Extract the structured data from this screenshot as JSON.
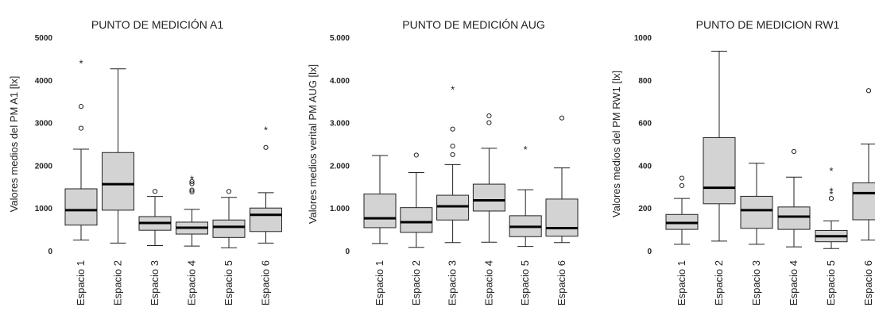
{
  "chart_data": [
    {
      "type": "box",
      "title": "PUNTO DE MEDICIÓN A1",
      "ylabel": "Valores medios del PM A1 [lx]",
      "ylim": [
        0,
        5000
      ],
      "yticks": [
        "0",
        "1000",
        "2000",
        "3000",
        "4000",
        "5000"
      ],
      "ytick_values": [
        0,
        1000,
        2000,
        3000,
        4000,
        5000
      ],
      "grid": false,
      "categories": [
        "Espacio 1",
        "Espacio 2",
        "Espacio 3",
        "Espacio 4",
        "Espacio 5",
        "Espacio 6"
      ],
      "boxes": [
        {
          "min": 250,
          "q1": 600,
          "median": 950,
          "q3": 1450,
          "max": 2380,
          "outliers": [
            2870,
            3380
          ],
          "extremes": [
            4400
          ]
        },
        {
          "min": 180,
          "q1": 950,
          "median": 1560,
          "q3": 2300,
          "max": 4260,
          "outliers": [],
          "extremes": []
        },
        {
          "min": 120,
          "q1": 480,
          "median": 650,
          "q3": 800,
          "max": 1270,
          "outliers": [
            1390
          ],
          "extremes": []
        },
        {
          "min": 110,
          "q1": 390,
          "median": 540,
          "q3": 670,
          "max": 970,
          "outliers": [
            1380,
            1420,
            1570,
            1620
          ],
          "extremes": [
            1680
          ]
        },
        {
          "min": 70,
          "q1": 310,
          "median": 560,
          "q3": 720,
          "max": 1250,
          "outliers": [
            1390
          ],
          "extremes": []
        },
        {
          "min": 180,
          "q1": 450,
          "median": 840,
          "q3": 1000,
          "max": 1360,
          "outliers": [
            2420
          ],
          "extremes": [
            2830
          ]
        }
      ]
    },
    {
      "type": "box",
      "title": "PUNTO DE MEDICIÓN AUG",
      "ylabel": "Valores medios verital PM AUG [lx]",
      "ylim": [
        0,
        5000
      ],
      "yticks": [
        "0",
        "1.000",
        "2.000",
        "3.000",
        "4.000",
        "5.000"
      ],
      "ytick_values": [
        0,
        1000,
        2000,
        3000,
        4000,
        5000
      ],
      "grid": false,
      "categories": [
        "Espacio 1",
        "Espacio 2",
        "Espacio 3",
        "Espacio 4",
        "Espacio 5",
        "Espacio 6"
      ],
      "boxes": [
        {
          "min": 170,
          "q1": 540,
          "median": 760,
          "q3": 1330,
          "max": 2230,
          "outliers": [],
          "extremes": []
        },
        {
          "min": 80,
          "q1": 430,
          "median": 670,
          "q3": 1010,
          "max": 1830,
          "outliers": [
            2240
          ],
          "extremes": []
        },
        {
          "min": 190,
          "q1": 720,
          "median": 1040,
          "q3": 1300,
          "max": 2020,
          "outliers": [
            2250,
            2450,
            2850
          ],
          "extremes": [
            3780
          ]
        },
        {
          "min": 200,
          "q1": 930,
          "median": 1180,
          "q3": 1560,
          "max": 2400,
          "outliers": [
            3000,
            3160
          ],
          "extremes": []
        },
        {
          "min": 100,
          "q1": 330,
          "median": 560,
          "q3": 820,
          "max": 1430,
          "outliers": [],
          "extremes": [
            2380
          ]
        },
        {
          "min": 190,
          "q1": 340,
          "median": 530,
          "q3": 1210,
          "max": 1940,
          "outliers": [
            3110
          ],
          "extremes": []
        }
      ]
    },
    {
      "type": "box",
      "title": "PUNTO DE MEDICION RW1",
      "ylabel": "Valores medios del PM RW1 [lx]",
      "ylim": [
        0,
        1000
      ],
      "yticks": [
        "0",
        "200",
        "400",
        "600",
        "800",
        "1000"
      ],
      "ytick_values": [
        0,
        200,
        400,
        600,
        800,
        1000
      ],
      "grid": false,
      "categories": [
        "Espacio 1",
        "Espacio 2",
        "Espacio 3",
        "Espacio 4",
        "Espacio 5",
        "Espacio 6"
      ],
      "boxes": [
        {
          "min": 30,
          "q1": 100,
          "median": 130,
          "q3": 170,
          "max": 245,
          "outliers": [
            305,
            340
          ],
          "extremes": []
        },
        {
          "min": 45,
          "q1": 220,
          "median": 295,
          "q3": 530,
          "max": 935,
          "outliers": [],
          "extremes": []
        },
        {
          "min": 30,
          "q1": 105,
          "median": 190,
          "q3": 255,
          "max": 410,
          "outliers": [],
          "extremes": []
        },
        {
          "min": 18,
          "q1": 100,
          "median": 160,
          "q3": 205,
          "max": 345,
          "outliers": [
            465
          ],
          "extremes": []
        },
        {
          "min": 10,
          "q1": 42,
          "median": 68,
          "q3": 95,
          "max": 140,
          "outliers": [
            245
          ],
          "extremes": [
            265,
            280,
            375
          ]
        },
        {
          "min": 50,
          "q1": 145,
          "median": 270,
          "q3": 318,
          "max": 500,
          "outliers": [
            750
          ],
          "extremes": []
        }
      ]
    }
  ]
}
